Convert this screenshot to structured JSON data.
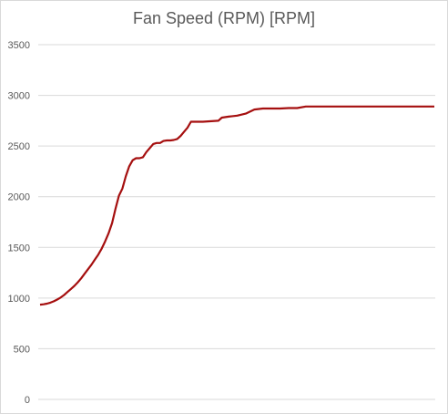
{
  "chart_data": {
    "type": "line",
    "title": "Fan Speed (RPM) [RPM]",
    "xlabel": "",
    "ylabel": "",
    "ylim": [
      0,
      3500
    ],
    "yticks": [
      0,
      500,
      1000,
      1500,
      2000,
      2500,
      3000,
      3500
    ],
    "grid": true,
    "legend": "none",
    "colors": {
      "line": "#a50f0f",
      "grid": "#d9d9d9",
      "text": "#595959"
    },
    "series": [
      {
        "values": [
          [
            0,
            935
          ],
          [
            2,
            938
          ],
          [
            4,
            945
          ],
          [
            6,
            955
          ],
          [
            8,
            968
          ],
          [
            10,
            985
          ],
          [
            12,
            1005
          ],
          [
            14,
            1030
          ],
          [
            16,
            1060
          ],
          [
            18,
            1090
          ],
          [
            20,
            1120
          ],
          [
            22,
            1155
          ],
          [
            24,
            1195
          ],
          [
            26,
            1240
          ],
          [
            28,
            1285
          ],
          [
            30,
            1330
          ],
          [
            32,
            1380
          ],
          [
            34,
            1430
          ],
          [
            36,
            1490
          ],
          [
            38,
            1560
          ],
          [
            40,
            1640
          ],
          [
            42,
            1740
          ],
          [
            44,
            1880
          ],
          [
            46,
            2010
          ],
          [
            48,
            2080
          ],
          [
            50,
            2200
          ],
          [
            52,
            2300
          ],
          [
            54,
            2360
          ],
          [
            56,
            2380
          ],
          [
            58,
            2380
          ],
          [
            60,
            2390
          ],
          [
            62,
            2440
          ],
          [
            64,
            2480
          ],
          [
            66,
            2520
          ],
          [
            68,
            2530
          ],
          [
            70,
            2530
          ],
          [
            72,
            2550
          ],
          [
            74,
            2555
          ],
          [
            76,
            2555
          ],
          [
            78,
            2560
          ],
          [
            80,
            2570
          ],
          [
            82,
            2600
          ],
          [
            84,
            2640
          ],
          [
            86,
            2680
          ],
          [
            88,
            2740
          ],
          [
            90,
            2740
          ],
          [
            95,
            2740
          ],
          [
            100,
            2745
          ],
          [
            104,
            2750
          ],
          [
            106,
            2780
          ],
          [
            110,
            2790
          ],
          [
            115,
            2800
          ],
          [
            120,
            2820
          ],
          [
            125,
            2860
          ],
          [
            130,
            2870
          ],
          [
            135,
            2870
          ],
          [
            140,
            2870
          ],
          [
            145,
            2875
          ],
          [
            150,
            2875
          ],
          [
            155,
            2890
          ],
          [
            160,
            2890
          ],
          [
            170,
            2890
          ],
          [
            180,
            2890
          ],
          [
            190,
            2890
          ],
          [
            200,
            2890
          ],
          [
            210,
            2890
          ],
          [
            220,
            2890
          ],
          [
            230,
            2890
          ]
        ]
      }
    ]
  }
}
